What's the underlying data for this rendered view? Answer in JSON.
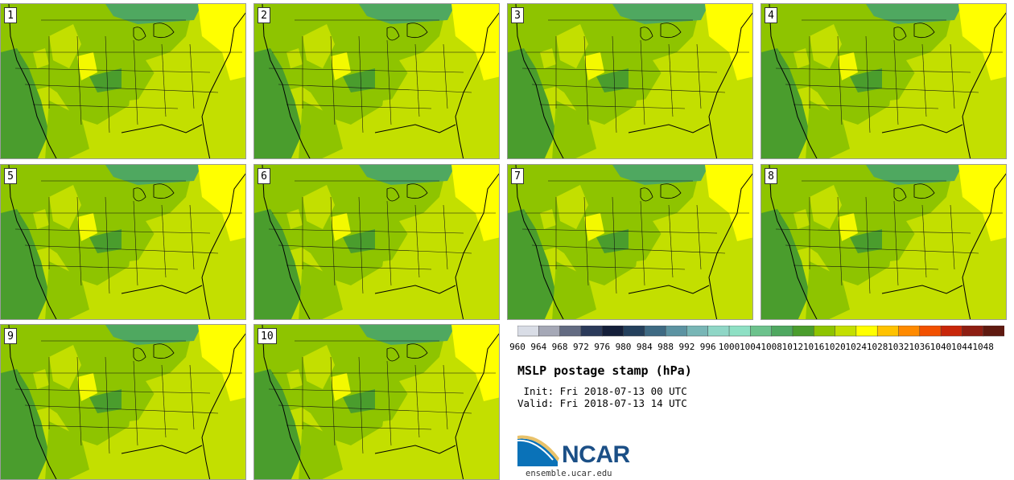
{
  "panels": [
    {
      "label": "1"
    },
    {
      "label": "2"
    },
    {
      "label": "3"
    },
    {
      "label": "4"
    },
    {
      "label": "5"
    },
    {
      "label": "6"
    },
    {
      "label": "7"
    },
    {
      "label": "8"
    },
    {
      "label": "9"
    },
    {
      "label": "10"
    }
  ],
  "colorbar": {
    "ticks": [
      "960",
      "964",
      "968",
      "972",
      "976",
      "980",
      "984",
      "988",
      "992",
      "996",
      "1000",
      "1004",
      "1008",
      "1012",
      "1016",
      "1020",
      "1024",
      "1028",
      "1032",
      "1036",
      "1040",
      "1044",
      "1048"
    ],
    "colors": [
      "#d9dde6",
      "#a5a8b6",
      "#636b82",
      "#2b3a5a",
      "#141f3a",
      "#24405d",
      "#3e6a83",
      "#5c93a2",
      "#78b6b6",
      "#8fd6c6",
      "#8ee0c4",
      "#6cc28c",
      "#4fa860",
      "#4a9d2d",
      "#8ec400",
      "#c3df00",
      "#ffff00",
      "#ffc200",
      "#ff8a00",
      "#f25000",
      "#c8260a",
      "#8e1e12",
      "#5f1a10"
    ]
  },
  "title": "MSLP postage stamp (hPa)",
  "init_text": " Init: Fri 2018-07-13 00 UTC",
  "valid_text": "Valid: Fri 2018-07-13 14 UTC",
  "logo": {
    "text": "NCAR",
    "url": "ensemble.ucar.edu"
  }
}
